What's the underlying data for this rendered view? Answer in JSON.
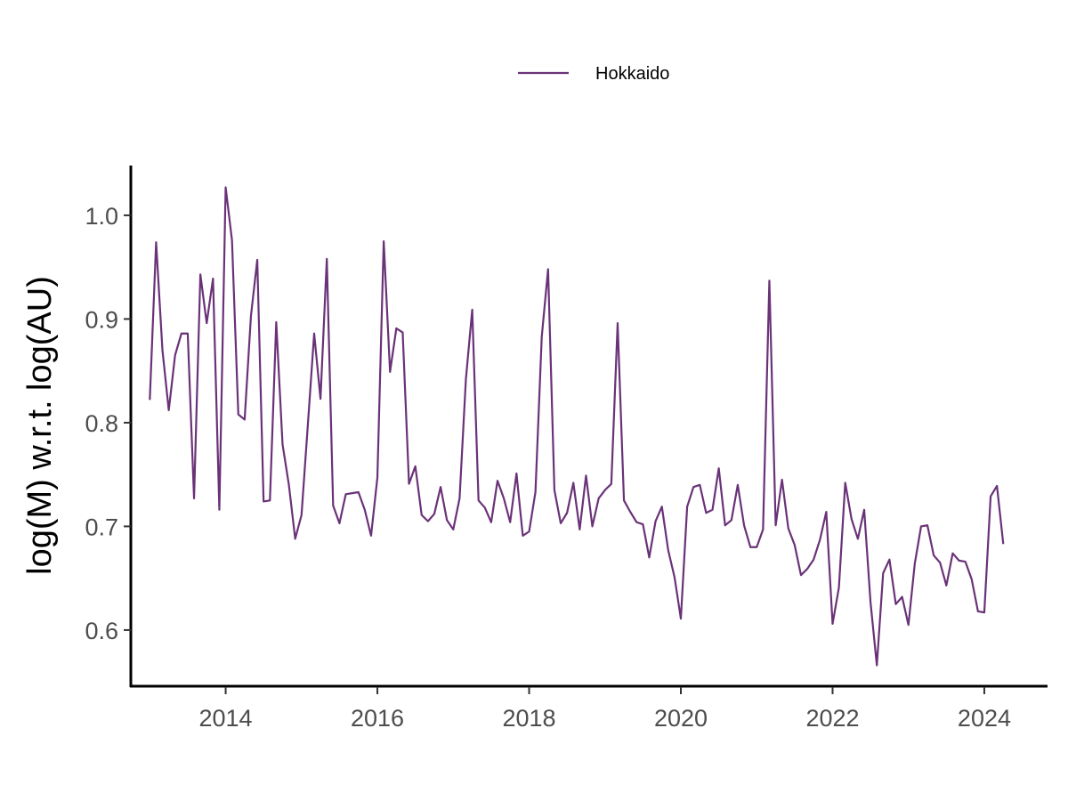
{
  "colors": {
    "series": "#6a3278",
    "axis": "#000000",
    "tick_text": "#4d4d4d"
  },
  "chart_data": {
    "type": "line",
    "title": "",
    "xlabel": "",
    "ylabel": "log(M) w.r.t. log(AU)",
    "xlim": [
      "2012-10-01",
      "2024-11-01"
    ],
    "ylim": [
      0.545,
      1.048
    ],
    "x_ticks": [
      "2014",
      "2016",
      "2018",
      "2020",
      "2022",
      "2024"
    ],
    "y_ticks": [
      "0.6",
      "0.7",
      "0.8",
      "0.9",
      "1.0"
    ],
    "grid": false,
    "legend_position": "top",
    "series": [
      {
        "name": "Hokkaido",
        "color": "#6a3278",
        "x": [
          "2013-01",
          "2013-02",
          "2013-03",
          "2013-04",
          "2013-05",
          "2013-06",
          "2013-07",
          "2013-08",
          "2013-09",
          "2013-10",
          "2013-11",
          "2013-12",
          "2014-01",
          "2014-02",
          "2014-03",
          "2014-04",
          "2014-05",
          "2014-06",
          "2014-07",
          "2014-08",
          "2014-09",
          "2014-10",
          "2014-11",
          "2014-12",
          "2015-01",
          "2015-02",
          "2015-03",
          "2015-04",
          "2015-05",
          "2015-06",
          "2015-07",
          "2015-08",
          "2015-09",
          "2015-10",
          "2015-11",
          "2015-12",
          "2016-01",
          "2016-02",
          "2016-03",
          "2016-04",
          "2016-05",
          "2016-06",
          "2016-07",
          "2016-08",
          "2016-09",
          "2016-10",
          "2016-11",
          "2016-12",
          "2017-01",
          "2017-02",
          "2017-03",
          "2017-04",
          "2017-05",
          "2017-06",
          "2017-07",
          "2017-08",
          "2017-09",
          "2017-10",
          "2017-11",
          "2017-12",
          "2018-01",
          "2018-02",
          "2018-03",
          "2018-04",
          "2018-05",
          "2018-06",
          "2018-07",
          "2018-08",
          "2018-09",
          "2018-10",
          "2018-11",
          "2018-12",
          "2019-01",
          "2019-02",
          "2019-03",
          "2019-04",
          "2019-05",
          "2019-06",
          "2019-07",
          "2019-08",
          "2019-09",
          "2019-10",
          "2019-11",
          "2019-12",
          "2020-01",
          "2020-02",
          "2020-03",
          "2020-04",
          "2020-05",
          "2020-06",
          "2020-07",
          "2020-08",
          "2020-09",
          "2020-10",
          "2020-11",
          "2020-12",
          "2021-01",
          "2021-02",
          "2021-03",
          "2021-04",
          "2021-05",
          "2021-06",
          "2021-07",
          "2021-08",
          "2021-09",
          "2021-10",
          "2021-11",
          "2021-12",
          "2022-01",
          "2022-02",
          "2022-03",
          "2022-04",
          "2022-05",
          "2022-06",
          "2022-07",
          "2022-08",
          "2022-09",
          "2022-10",
          "2022-11",
          "2022-12",
          "2023-01",
          "2023-02",
          "2023-03",
          "2023-04",
          "2023-05",
          "2023-06",
          "2023-07",
          "2023-08",
          "2023-09",
          "2023-10",
          "2023-11",
          "2023-12",
          "2024-01",
          "2024-02",
          "2024-03",
          "2024-04"
        ],
        "values": [
          0.822,
          0.974,
          0.87,
          0.812,
          0.865,
          0.886,
          0.886,
          0.727,
          0.943,
          0.896,
          0.939,
          0.716,
          1.027,
          0.976,
          0.808,
          0.803,
          0.903,
          0.957,
          0.724,
          0.725,
          0.897,
          0.779,
          0.74,
          0.688,
          0.711,
          0.798,
          0.886,
          0.823,
          0.958,
          0.72,
          0.703,
          0.731,
          0.732,
          0.733,
          0.716,
          0.691,
          0.747,
          0.975,
          0.849,
          0.891,
          0.887,
          0.741,
          0.758,
          0.711,
          0.705,
          0.712,
          0.738,
          0.706,
          0.697,
          0.727,
          0.842,
          0.909,
          0.725,
          0.718,
          0.704,
          0.744,
          0.727,
          0.704,
          0.751,
          0.691,
          0.695,
          0.733,
          0.883,
          0.948,
          0.735,
          0.703,
          0.713,
          0.742,
          0.697,
          0.749,
          0.7,
          0.727,
          0.735,
          0.741,
          0.896,
          0.725,
          0.714,
          0.704,
          0.702,
          0.67,
          0.705,
          0.719,
          0.677,
          0.651,
          0.611,
          0.719,
          0.738,
          0.74,
          0.713,
          0.716,
          0.756,
          0.701,
          0.706,
          0.74,
          0.701,
          0.68,
          0.68,
          0.697,
          0.937,
          0.701,
          0.745,
          0.698,
          0.682,
          0.653,
          0.659,
          0.668,
          0.687,
          0.714,
          0.606,
          0.641,
          0.742,
          0.707,
          0.688,
          0.716,
          0.627,
          0.566,
          0.655,
          0.668,
          0.625,
          0.632,
          0.605,
          0.664,
          0.7,
          0.701,
          0.672,
          0.665,
          0.643,
          0.674,
          0.667,
          0.666,
          0.649,
          0.618,
          0.617,
          0.729,
          0.739,
          0.683
        ]
      }
    ]
  }
}
